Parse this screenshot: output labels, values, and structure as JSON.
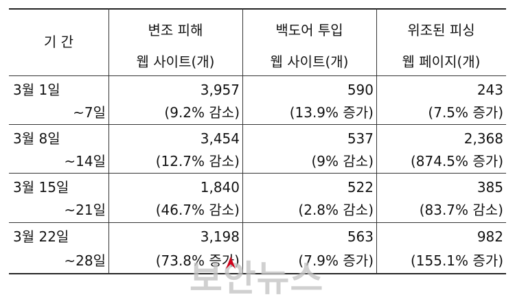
{
  "header": {
    "period": "기 간",
    "col1_line1": "변조 피해",
    "col1_line2": "웹 사이트(개)",
    "col2_line1": "백도어 투입",
    "col2_line2": "웹 사이트(개)",
    "col3_line1": "위조된 피싱",
    "col3_line2": "웹 페이지(개)"
  },
  "rows": [
    {
      "start": "3월 1일",
      "end": "~7일",
      "v1": "3,957",
      "c1": "(9.2% 감소)",
      "v2": "590",
      "c2": "(13.9% 증가)",
      "v3": "243",
      "c3": "(7.5% 증가)"
    },
    {
      "start": "3월 8일",
      "end": "~14일",
      "v1": "3,454",
      "c1": "(12.7% 감소)",
      "v2": "537",
      "c2": "(9% 감소)",
      "v3": "2,368",
      "c3": "(874.5% 증가)"
    },
    {
      "start": "3월 15일",
      "end": "~21일",
      "v1": "1,840",
      "c1": "(46.7% 감소)",
      "v2": "522",
      "c2": "(2.8% 감소)",
      "v3": "385",
      "c3": "(83.7% 감소)"
    },
    {
      "start": "3월 22일",
      "end": "~28일",
      "v1": "3,198",
      "c1": "(73.8% 증가)",
      "v2": "563",
      "c2": "(7.9% 증가)",
      "v3": "982",
      "c3": "(155.1% 증가)"
    }
  ],
  "watermark": {
    "text": "보안뉴스",
    "accent_color": "#d0021b"
  }
}
